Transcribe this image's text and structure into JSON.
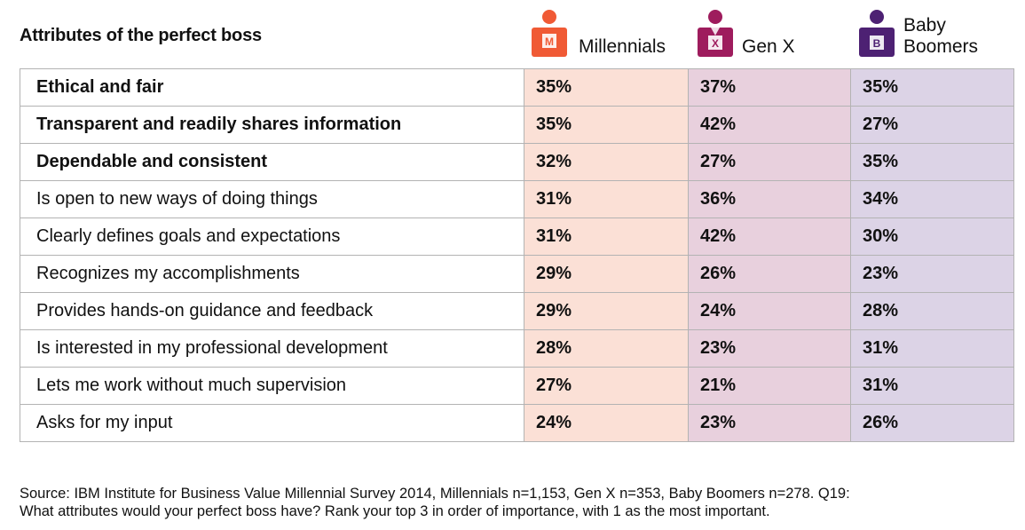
{
  "title": "Attributes of the perfect boss",
  "generations": [
    {
      "name": "Millennials",
      "icon_letter": "M",
      "icon_name": "millennial-person-icon",
      "color": "#f05a35",
      "cell_color": "#fbe0d6"
    },
    {
      "name": "Gen X",
      "icon_letter": "X",
      "icon_name": "genx-person-icon",
      "color": "#9e1c5d",
      "cell_color": "#e8d0dd"
    },
    {
      "name_lines": [
        "Baby",
        "Boomers"
      ],
      "icon_letter": "B",
      "icon_name": "boomer-person-icon",
      "color": "#4d2173",
      "cell_color": "#dcd3e6"
    }
  ],
  "chart_data": {
    "type": "table",
    "title": "Attributes of the perfect boss",
    "columns": [
      "Millennials",
      "Gen X",
      "Baby Boomers"
    ],
    "rows": [
      {
        "label": "Ethical and fair",
        "bold": true,
        "values": [
          "35%",
          "37%",
          "35%"
        ]
      },
      {
        "label": "Transparent and readily shares information",
        "bold": true,
        "values": [
          "35%",
          "42%",
          "27%"
        ]
      },
      {
        "label": "Dependable and consistent",
        "bold": true,
        "values": [
          "32%",
          "27%",
          "35%"
        ]
      },
      {
        "label": "Is open to new ways of doing things",
        "bold": false,
        "values": [
          "31%",
          "36%",
          "34%"
        ]
      },
      {
        "label": "Clearly defines goals and expectations",
        "bold": false,
        "values": [
          "31%",
          "42%",
          "30%"
        ]
      },
      {
        "label": "Recognizes my accomplishments",
        "bold": false,
        "values": [
          "29%",
          "26%",
          "23%"
        ]
      },
      {
        "label": "Provides hands-on guidance and feedback",
        "bold": false,
        "values": [
          "29%",
          "24%",
          "28%"
        ]
      },
      {
        "label": "Is interested in my professional development",
        "bold": false,
        "values": [
          "28%",
          "23%",
          "31%"
        ]
      },
      {
        "label": "Lets me work without much supervision",
        "bold": false,
        "values": [
          "27%",
          "21%",
          "31%"
        ]
      },
      {
        "label": "Asks for my input",
        "bold": false,
        "values": [
          "24%",
          "23%",
          "26%"
        ]
      }
    ]
  },
  "source_lines": [
    "Source: IBM Institute for Business Value Millennial Survey 2014, Millennials n=1,153, Gen X n=353, Baby Boomers n=278. Q19:",
    "What attributes would your perfect boss have? Rank your top 3 in order of importance, with 1 as the most important."
  ]
}
